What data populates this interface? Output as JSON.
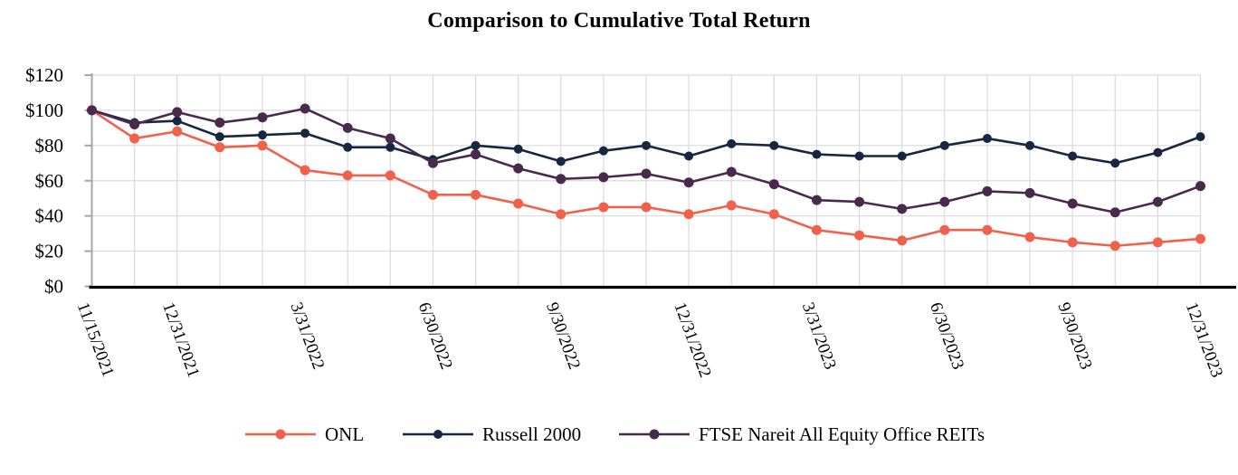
{
  "page": {
    "background": "#ffffff"
  },
  "chart_data": {
    "type": "line",
    "title": "Comparison to Cumulative Total Return",
    "ylim": [
      0,
      120
    ],
    "y_tick_step": 20,
    "y_tick_prefix": "$",
    "grid": true,
    "legend_position": "bottom",
    "num_points": 27,
    "x_tick_labels": [
      "11/15/2021",
      "12/31/2021",
      "3/31/2022",
      "6/30/2022",
      "9/30/2022",
      "12/31/2022",
      "3/31/2023",
      "6/30/2023",
      "9/30/2023",
      "12/31/2023"
    ],
    "x_tick_point_indices": [
      0,
      2,
      5,
      8,
      11,
      14,
      17,
      20,
      23,
      26
    ],
    "series": [
      {
        "name": "ONL",
        "color": "#F0614C",
        "values": [
          100,
          84,
          88,
          79,
          80,
          66,
          63,
          63,
          52,
          52,
          47,
          41,
          45,
          45,
          41,
          46,
          41,
          32,
          29,
          26,
          32,
          32,
          28,
          25,
          23,
          25,
          27
        ]
      },
      {
        "name": "Russell 2000",
        "color": "#17273F",
        "values": [
          100,
          93,
          94,
          85,
          86,
          87,
          79,
          79,
          72,
          80,
          78,
          71,
          77,
          80,
          74,
          81,
          80,
          75,
          74,
          74,
          80,
          84,
          80,
          74,
          70,
          76,
          85
        ]
      },
      {
        "name": "FTSE Nareit All Equity Office REITs",
        "color": "#4A2A4C",
        "values": [
          100,
          92,
          99,
          93,
          96,
          101,
          90,
          84,
          70,
          75,
          67,
          61,
          62,
          64,
          59,
          65,
          58,
          49,
          48,
          44,
          48,
          54,
          53,
          47,
          42,
          48,
          57
        ]
      }
    ],
    "colors": {
      "gridline": "#DADADA",
      "y_axis_line": "#A6A6A6",
      "x_axis_line": "#000000",
      "text": "#000000"
    }
  }
}
